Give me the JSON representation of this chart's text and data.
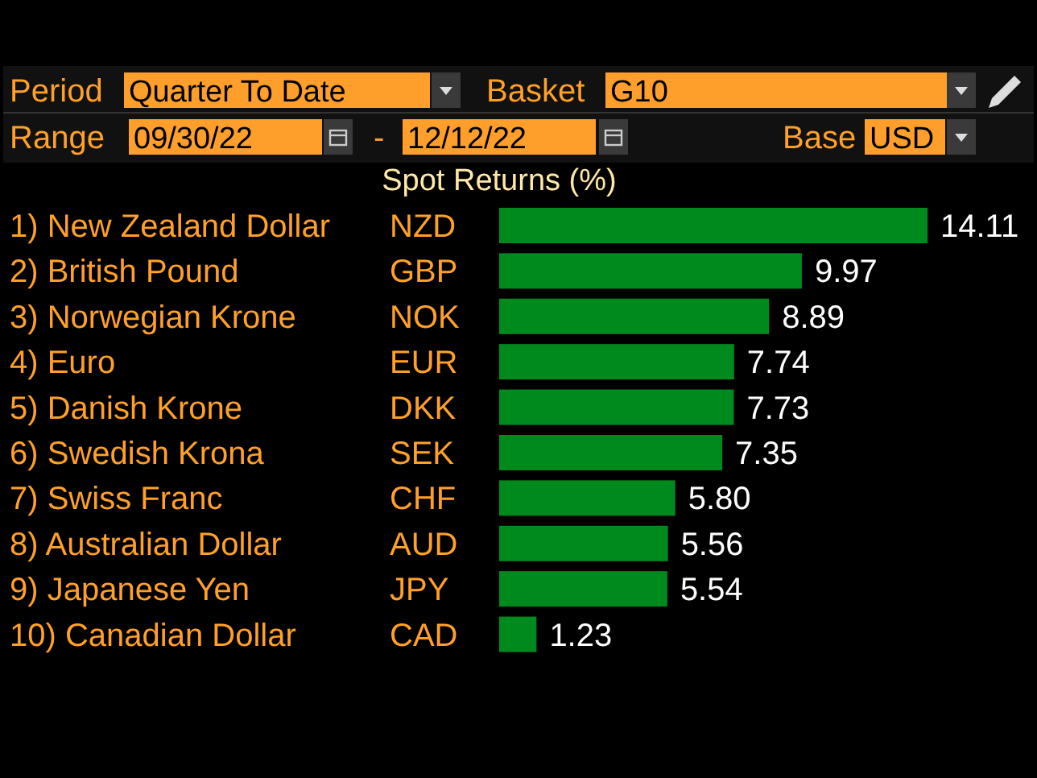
{
  "chart_data": {
    "type": "bar",
    "orientation": "horizontal",
    "title": "Spot Returns (%)",
    "categories": [
      "1) New Zealand Dollar",
      "2) British Pound",
      "3) Norwegian Krone",
      "4) Euro",
      "5) Danish Krone",
      "6) Swedish Krona",
      "7) Swiss Franc",
      "8) Australian Dollar",
      "9) Japanese Yen",
      "10) Canadian Dollar"
    ],
    "values": [
      14.11,
      9.97,
      8.89,
      7.74,
      7.73,
      7.35,
      5.8,
      5.56,
      5.54,
      1.23
    ],
    "color": "#008a1e",
    "tick_labels": false,
    "value_labels": [
      "14.11",
      "9.97",
      "8.89",
      "7.74",
      "7.73",
      "7.35",
      "5.80",
      "5.56",
      "5.54",
      "1.23"
    ],
    "annotations": [
      "Period",
      "Quarter To Date",
      "Basket",
      "G10",
      "Range",
      "09/30/22",
      "-",
      "12/12/22",
      "Base",
      "USD",
      "NZD",
      "GBP",
      "NOK",
      "EUR",
      "DKK",
      "SEK",
      "CHF",
      "AUD",
      "JPY",
      "CAD"
    ]
  }
}
